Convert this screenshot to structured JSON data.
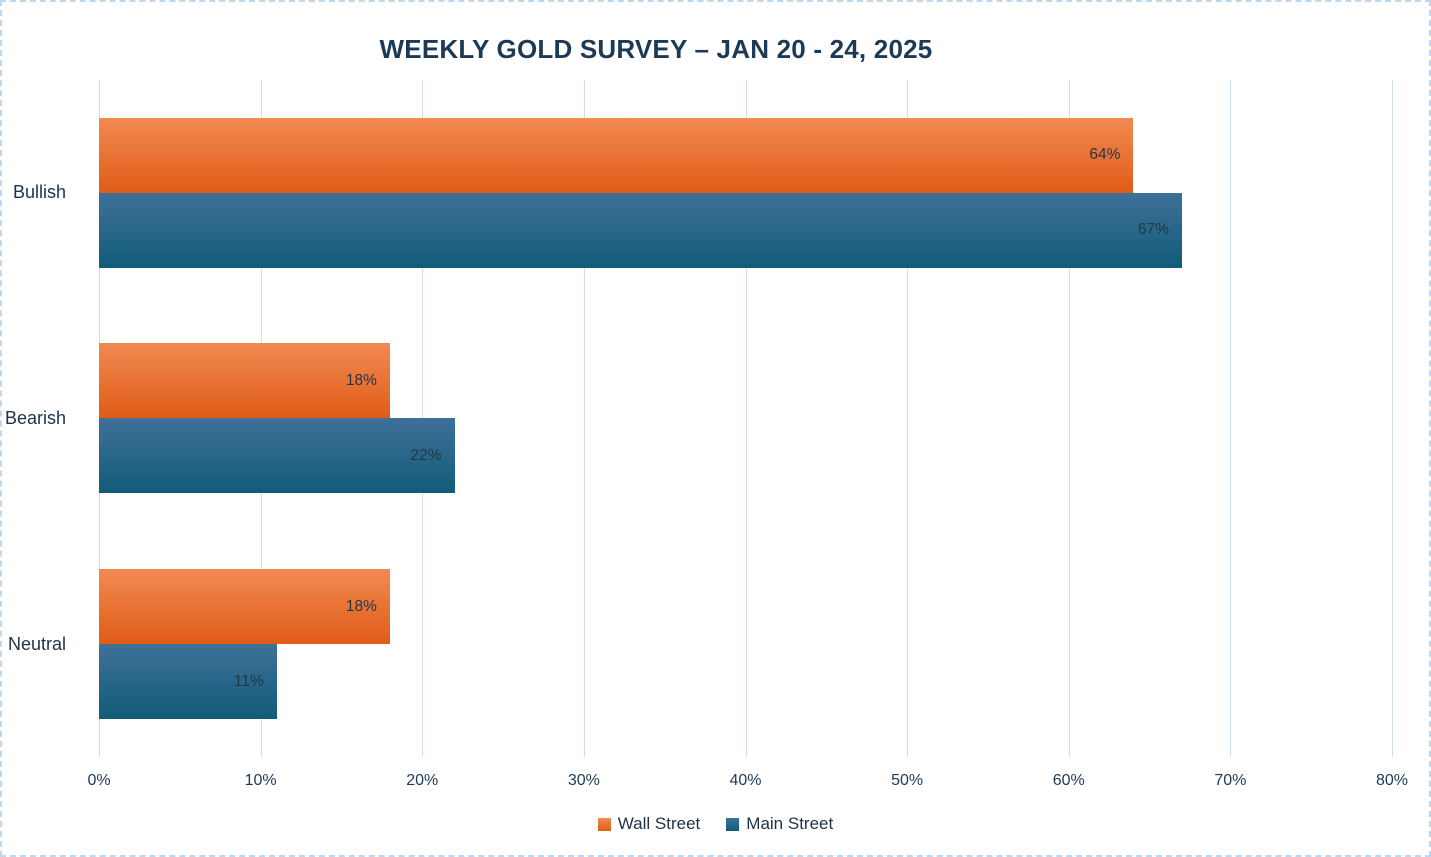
{
  "chart_data": {
    "type": "bar",
    "orientation": "horizontal",
    "title": "WEEKLY GOLD SURVEY – JAN 20 - 24, 2025",
    "categories": [
      "Bullish",
      "Bearish",
      "Neutral"
    ],
    "series": [
      {
        "name": "Wall Street",
        "values": [
          64,
          18,
          18
        ],
        "labels": [
          "64%",
          "18%",
          "18%"
        ],
        "color": "#E76F35",
        "gradient_top": "#F18A52",
        "gradient_bottom": "#E05C17"
      },
      {
        "name": "Main Street",
        "values": [
          67,
          22,
          11
        ],
        "labels": [
          "67%",
          "22%",
          "11%"
        ],
        "color": "#1F5C80",
        "gradient_top": "#3F7099",
        "gradient_bottom": "#115C79"
      }
    ],
    "x_ticks": [
      "0%",
      "10%",
      "20%",
      "30%",
      "40%",
      "50%",
      "60%",
      "70%",
      "80%"
    ],
    "xlim": [
      0,
      80
    ],
    "grid": true,
    "legend_position": "bottom"
  },
  "colors": {
    "title_text": "#1C3A56",
    "axis_text": "#1E3A56",
    "category_text": "#1E3248",
    "data_label_text": "#233646",
    "gridline": "#CBDDEF",
    "border": "#BDD7EE",
    "background": "#FFFFFF"
  }
}
